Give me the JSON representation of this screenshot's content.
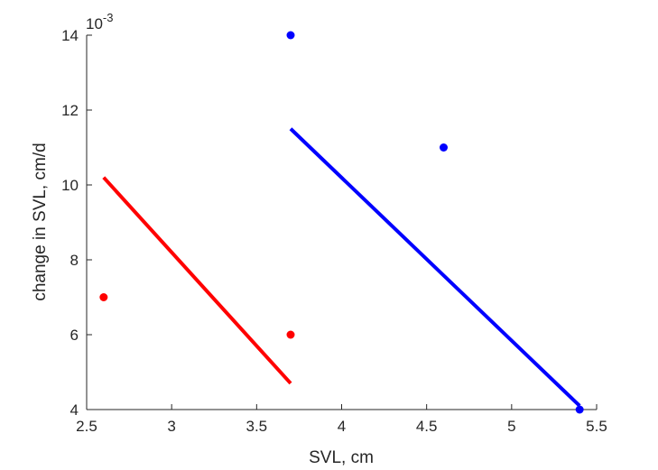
{
  "chart_data": {
    "type": "scatter",
    "title": "",
    "xlabel": "SVL, cm",
    "ylabel": "change in SVL, cm/d",
    "xlim": [
      2.5,
      5.5
    ],
    "ylim": [
      0.004,
      0.014
    ],
    "x_ticks": [
      2.5,
      3,
      3.5,
      4,
      4.5,
      5,
      5.5
    ],
    "x_tick_labels": [
      "2.5",
      "3",
      "3.5",
      "4",
      "4.5",
      "5",
      "5.5"
    ],
    "y_ticks": [
      0.004,
      0.006,
      0.008,
      0.01,
      0.012,
      0.014
    ],
    "y_tick_labels": [
      "4",
      "6",
      "8",
      "10",
      "12",
      "14"
    ],
    "y_exponent_base": "10",
    "y_exponent_power": "-3",
    "grid": false,
    "series": [
      {
        "color": "#ff0000",
        "points": [
          {
            "x": 2.6,
            "y": 0.007
          },
          {
            "x": 3.7,
            "y": 0.006
          }
        ],
        "fit_line": [
          {
            "x": 2.6,
            "y": 0.0102
          },
          {
            "x": 3.7,
            "y": 0.0047
          }
        ]
      },
      {
        "color": "#0000ff",
        "points": [
          {
            "x": 3.7,
            "y": 0.014
          },
          {
            "x": 4.6,
            "y": 0.011
          },
          {
            "x": 5.4,
            "y": 0.004
          }
        ],
        "fit_line": [
          {
            "x": 3.7,
            "y": 0.0115
          },
          {
            "x": 5.4,
            "y": 0.0041
          }
        ]
      }
    ]
  }
}
